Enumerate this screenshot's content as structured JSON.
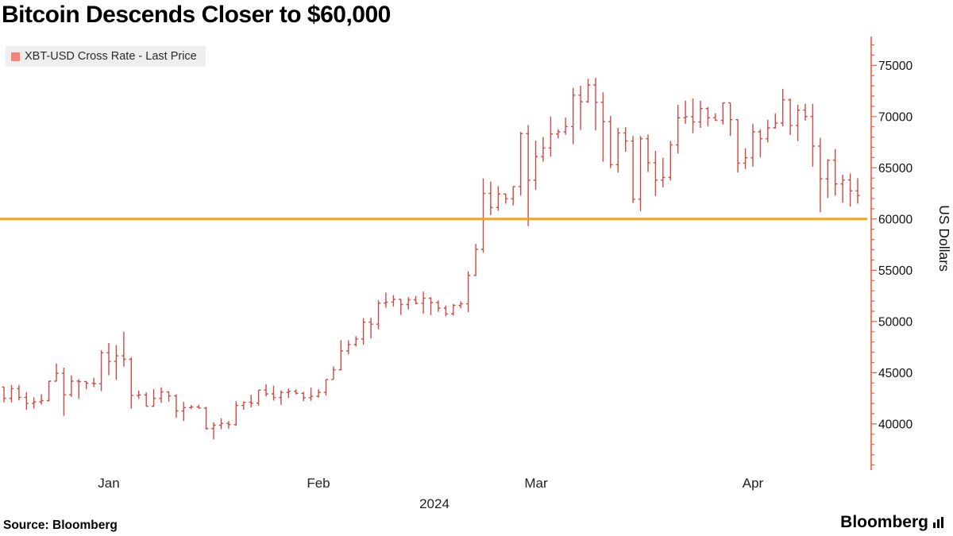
{
  "title": "Bitcoin Descends Closer to $60,000",
  "legend": {
    "swatch_color": "#f4837a",
    "label": "XBT-USD Cross Rate - Last Price"
  },
  "source": "Source: Bloomberg",
  "brand": {
    "name": "Bloomberg"
  },
  "chart_data": {
    "type": "bar",
    "subtype": "ohlc-daily",
    "title": "Bitcoin Descends Closer to $60,000",
    "series_name": "XBT-USD Cross Rate - Last Price",
    "ylabel": "US Dollars",
    "ylim": [
      35500,
      77500
    ],
    "y_ticks": [
      40000,
      45000,
      50000,
      55000,
      60000,
      65000,
      70000,
      75000
    ],
    "x_ticks": [
      "Jan",
      "Feb",
      "Mar",
      "Apr"
    ],
    "x_year_label": "2024",
    "grid": false,
    "legend_position": "top-left",
    "reference_line": {
      "value": 60000,
      "color": "#f7a21b"
    },
    "colors": {
      "bar": "#cf4a42",
      "axis": "#ee5a40"
    },
    "start_date": "2023-12-26",
    "frequency": "daily",
    "dates": [
      "12-26",
      "12-27",
      "12-28",
      "12-29",
      "12-30",
      "12-31",
      "01-01",
      "01-02",
      "01-03",
      "01-04",
      "01-05",
      "01-06",
      "01-07",
      "01-08",
      "01-09",
      "01-10",
      "01-11",
      "01-12",
      "01-13",
      "01-14",
      "01-15",
      "01-16",
      "01-17",
      "01-18",
      "01-19",
      "01-20",
      "01-21",
      "01-22",
      "01-23",
      "01-24",
      "01-25",
      "01-26",
      "01-27",
      "01-28",
      "01-29",
      "01-30",
      "01-31",
      "02-01",
      "02-02",
      "02-03",
      "02-04",
      "02-05",
      "02-06",
      "02-07",
      "02-08",
      "02-09",
      "02-10",
      "02-11",
      "02-12",
      "02-13",
      "02-14",
      "02-15",
      "02-16",
      "02-17",
      "02-18",
      "02-19",
      "02-20",
      "02-21",
      "02-22",
      "02-23",
      "02-24",
      "02-25",
      "02-26",
      "02-27",
      "02-28",
      "02-29",
      "03-01",
      "03-02",
      "03-03",
      "03-04",
      "03-05",
      "03-06",
      "03-07",
      "03-08",
      "03-09",
      "03-10",
      "03-11",
      "03-12",
      "03-13",
      "03-14",
      "03-15",
      "03-16",
      "03-17",
      "03-18",
      "03-19",
      "03-20",
      "03-21",
      "03-22",
      "03-23",
      "03-24",
      "03-25",
      "03-26",
      "03-27",
      "03-28",
      "03-29",
      "03-30",
      "03-31",
      "04-01",
      "04-02",
      "04-03",
      "04-04",
      "04-05",
      "04-06",
      "04-07",
      "04-08",
      "04-09",
      "04-10",
      "04-11",
      "04-12",
      "04-13",
      "04-14",
      "04-15",
      "04-16",
      "04-17",
      "04-18"
    ],
    "open": [
      43600,
      42500,
      43450,
      42600,
      42000,
      42150,
      42280,
      44180,
      44950,
      42850,
      44180,
      44150,
      43970,
      43930,
      46950,
      46110,
      46650,
      46310,
      42780,
      42840,
      41720,
      42500,
      43130,
      42740,
      41270,
      41600,
      41670,
      41550,
      39550,
      39880,
      40060,
      39940,
      41810,
      42120,
      42030,
      43300,
      42940,
      42580,
      43080,
      43190,
      42990,
      42570,
      42700,
      43090,
      44340,
      45290,
      47130,
      47750,
      48290,
      49940,
      49740,
      51800,
      51900,
      52160,
      51660,
      52120,
      51780,
      52270,
      51850,
      51300,
      50740,
      51570,
      51730,
      54500,
      57040,
      62500,
      61130,
      62440,
      61990,
      63170,
      68330,
      63800,
      66090,
      66930,
      68300,
      68500,
      69020,
      72080,
      71450,
      73080,
      71390,
      69500,
      65300,
      68390,
      67610,
      61940,
      67840,
      65500,
      63800,
      64060,
      67230,
      69880,
      69990,
      69470,
      70780,
      69890,
      69630,
      71330,
      69700,
      65460,
      65980,
      68510,
      67840,
      68900,
      69360,
      71630,
      69140,
      70630,
      70010,
      67120,
      63920,
      65740,
      63420,
      63810,
      62750
    ],
    "high": [
      43600,
      43800,
      43800,
      43100,
      42600,
      42900,
      44200,
      45900,
      45500,
      44750,
      44350,
      44200,
      44500,
      47200,
      47900,
      47700,
      49000,
      46500,
      43250,
      43080,
      43400,
      43580,
      43190,
      42900,
      42150,
      41850,
      41880,
      41680,
      40170,
      40550,
      40290,
      42200,
      42190,
      42840,
      43320,
      43880,
      43740,
      43280,
      43440,
      43380,
      43130,
      43550,
      43380,
      44380,
      45610,
      48170,
      48170,
      48580,
      50330,
      50370,
      52070,
      52820,
      52580,
      52190,
      52380,
      52490,
      52930,
      52370,
      52070,
      51550,
      51700,
      51960,
      54900,
      57580,
      63970,
      63650,
      63210,
      62500,
      63230,
      68500,
      69170,
      67640,
      67990,
      70000,
      68770,
      69900,
      72800,
      73000,
      73680,
      73780,
      72360,
      70050,
      68900,
      68960,
      68110,
      68100,
      68240,
      66650,
      65980,
      67620,
      71150,
      71560,
      71770,
      71550,
      70920,
      70320,
      71380,
      71340,
      69720,
      66900,
      69310,
      68770,
      69680,
      70310,
      72700,
      71760,
      71150,
      71250,
      71230,
      67930,
      65840,
      66830,
      64320,
      64450,
      63980
    ],
    "low": [
      42100,
      42100,
      42300,
      41400,
      41500,
      41900,
      42200,
      44150,
      40800,
      42650,
      42450,
      43400,
      43600,
      43200,
      44750,
      44300,
      45600,
      41500,
      42450,
      41720,
      41700,
      42050,
      42190,
      40600,
      40280,
      41450,
      41500,
      39450,
      38500,
      39480,
      39550,
      39820,
      41390,
      41620,
      41800,
      42680,
      42280,
      41880,
      42550,
      42880,
      42220,
      42260,
      42570,
      42780,
      44330,
      45240,
      46800,
      47550,
      47710,
      48350,
      49250,
      51340,
      51460,
      50640,
      51170,
      51680,
      50760,
      50630,
      50940,
      50520,
      50580,
      51290,
      50930,
      54450,
      56700,
      60380,
      60800,
      61500,
      61320,
      62300,
      59300,
      62850,
      65600,
      66080,
      67860,
      68230,
      67300,
      68700,
      71330,
      68650,
      65600,
      64970,
      64530,
      66570,
      61550,
      60780,
      64590,
      62260,
      63060,
      63770,
      66390,
      69290,
      68360,
      68900,
      69040,
      69570,
      69220,
      68110,
      64550,
      64880,
      65110,
      66020,
      67470,
      68830,
      69050,
      68210,
      67600,
      69600,
      65110,
      60660,
      62050,
      62270,
      61600,
      61200,
      61500
    ],
    "close": [
      42500,
      43450,
      42600,
      42000,
      42150,
      42280,
      44180,
      44950,
      42850,
      44180,
      44150,
      43970,
      43930,
      46950,
      46110,
      46650,
      46310,
      42780,
      42840,
      41720,
      42500,
      43130,
      42740,
      41270,
      41600,
      41670,
      41550,
      39550,
      39880,
      40060,
      39940,
      41810,
      42120,
      42030,
      43300,
      42940,
      42580,
      43080,
      43190,
      42990,
      42570,
      42700,
      43090,
      44340,
      45290,
      47130,
      47750,
      48290,
      49940,
      49740,
      51800,
      51900,
      52160,
      51660,
      52120,
      51780,
      52270,
      51850,
      51300,
      50740,
      51570,
      51730,
      54500,
      57040,
      62500,
      61130,
      62440,
      61990,
      63170,
      68330,
      63800,
      66090,
      66930,
      68300,
      68500,
      69020,
      72080,
      71450,
      73080,
      71390,
      69500,
      65300,
      68390,
      67610,
      61940,
      67840,
      65500,
      63800,
      64060,
      67230,
      69880,
      69990,
      69470,
      70780,
      69890,
      69630,
      71330,
      69700,
      65460,
      65980,
      68510,
      67840,
      68900,
      69360,
      71630,
      69140,
      70630,
      70010,
      67120,
      63920,
      65740,
      63420,
      63810,
      62750,
      62300
    ]
  }
}
